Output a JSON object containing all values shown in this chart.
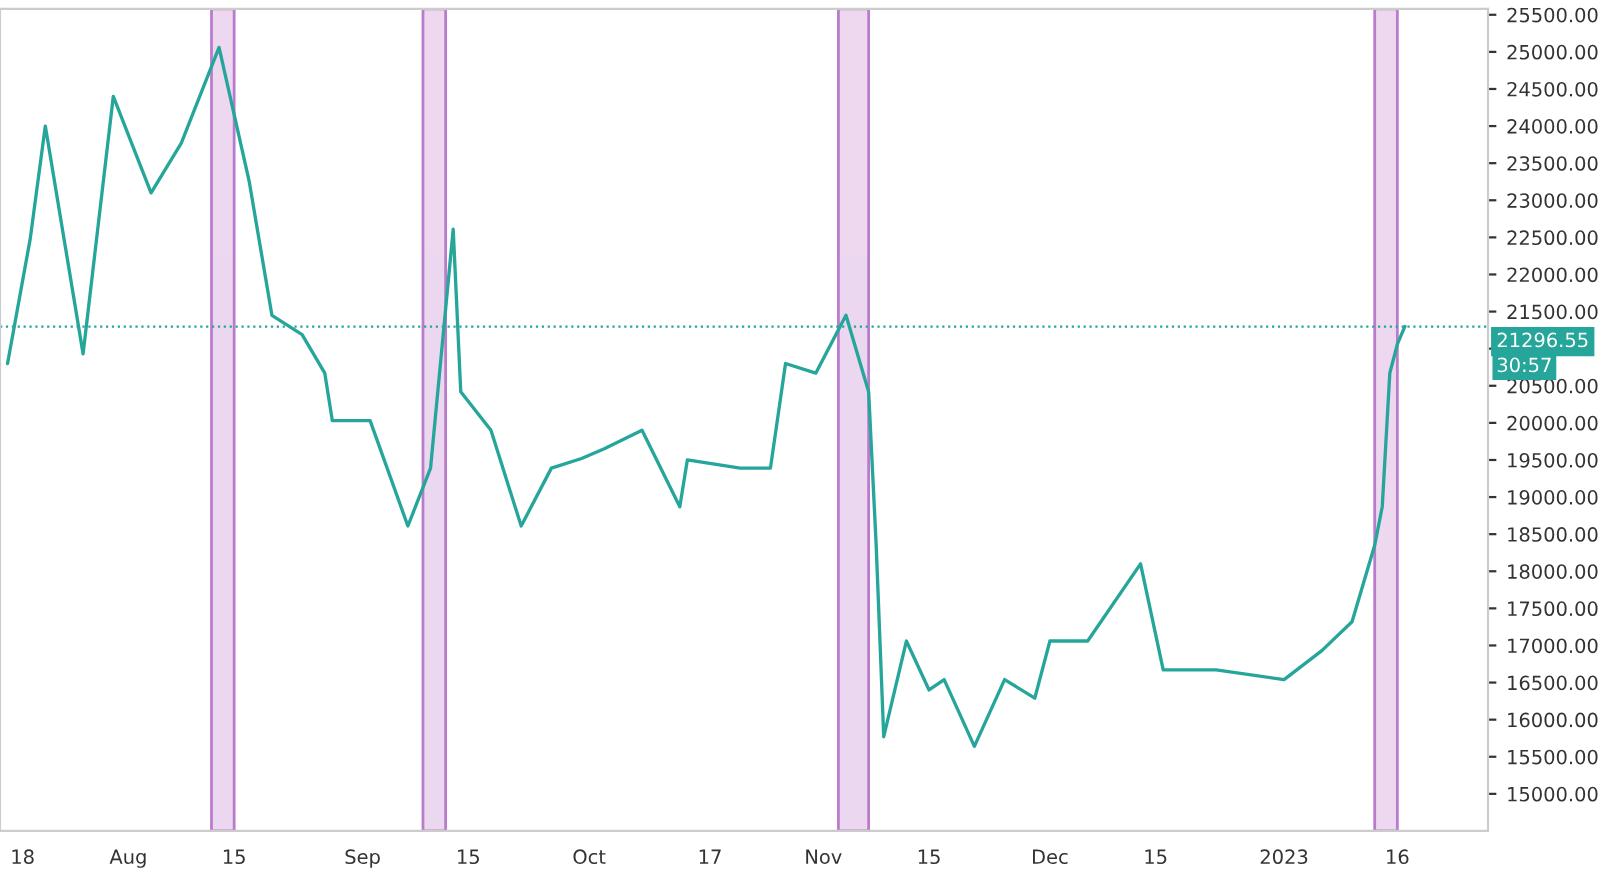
{
  "chart_data": {
    "type": "line",
    "x": [
      "2022-07-16",
      "2022-07-19",
      "2022-07-21",
      "2022-07-26",
      "2022-07-30",
      "2022-08-04",
      "2022-08-08",
      "2022-08-13",
      "2022-08-17",
      "2022-08-20",
      "2022-08-24",
      "2022-08-27",
      "2022-08-28",
      "2022-09-02",
      "2022-09-07",
      "2022-09-10",
      "2022-09-13",
      "2022-09-14",
      "2022-09-18",
      "2022-09-22",
      "2022-09-26",
      "2022-09-30",
      "2022-10-03",
      "2022-10-08",
      "2022-10-13",
      "2022-10-14",
      "2022-10-21",
      "2022-10-25",
      "2022-10-27",
      "2022-10-31",
      "2022-11-04",
      "2022-11-07",
      "2022-11-08",
      "2022-11-09",
      "2022-11-12",
      "2022-11-15",
      "2022-11-17",
      "2022-11-21",
      "2022-11-25",
      "2022-11-29",
      "2022-12-01",
      "2022-12-06",
      "2022-12-13",
      "2022-12-16",
      "2022-12-23",
      "2023-01-01",
      "2023-01-06",
      "2023-01-10",
      "2023-01-13",
      "2023-01-14",
      "2023-01-15",
      "2023-01-16",
      "2023-01-17"
    ],
    "series": [
      {
        "color": "#26a69a",
        "values": [
          20800,
          22480,
          24000,
          20930,
          24400,
          23100,
          23770,
          25060,
          23250,
          21450,
          21190,
          20670,
          20030,
          20030,
          18610,
          19390,
          22610,
          20420,
          19900,
          18610,
          19390,
          19520,
          19650,
          19900,
          18870,
          19500,
          19390,
          19390,
          20800,
          20670,
          21450,
          20420,
          18350,
          15770,
          17060,
          16400,
          16540,
          15640,
          16540,
          16290,
          17060,
          17060,
          18100,
          16670,
          16670,
          16540,
          16930,
          17320,
          18350,
          18870,
          20670,
          21060,
          21300
        ]
      }
    ],
    "xlim": [
      "2022-07-15",
      "2023-01-28"
    ],
    "ylim": [
      14500,
      25580
    ],
    "xticks": [
      {
        "value": "2022-07-18",
        "label": "18"
      },
      {
        "value": "2022-08-01",
        "label": "Aug"
      },
      {
        "value": "2022-08-15",
        "label": "15"
      },
      {
        "value": "2022-09-01",
        "label": "Sep"
      },
      {
        "value": "2022-09-15",
        "label": "15"
      },
      {
        "value": "2022-10-01",
        "label": "Oct"
      },
      {
        "value": "2022-10-17",
        "label": "17"
      },
      {
        "value": "2022-11-01",
        "label": "Nov"
      },
      {
        "value": "2022-11-15",
        "label": "15"
      },
      {
        "value": "2022-12-01",
        "label": "Dec"
      },
      {
        "value": "2022-12-15",
        "label": "15"
      },
      {
        "value": "2023-01-01",
        "label": "2023"
      },
      {
        "value": "2023-01-16",
        "label": "16"
      }
    ],
    "yticks": [
      {
        "value": 15000,
        "label": "15000.00"
      },
      {
        "value": 15500,
        "label": "15500.00"
      },
      {
        "value": 16000,
        "label": "16000.00"
      },
      {
        "value": 16500,
        "label": "16500.00"
      },
      {
        "value": 17000,
        "label": "17000.00"
      },
      {
        "value": 17500,
        "label": "17500.00"
      },
      {
        "value": 18000,
        "label": "18000.00"
      },
      {
        "value": 18500,
        "label": "18500.00"
      },
      {
        "value": 19000,
        "label": "19000.00"
      },
      {
        "value": 19500,
        "label": "19500.00"
      },
      {
        "value": 20000,
        "label": "20000.00"
      },
      {
        "value": 20500,
        "label": "20500.00"
      },
      {
        "value": 21000,
        "label": null
      },
      {
        "value": 21500,
        "label": "21500.00"
      },
      {
        "value": 22000,
        "label": "22000.00"
      },
      {
        "value": 22500,
        "label": "22500.00"
      },
      {
        "value": 23000,
        "label": "23000.00"
      },
      {
        "value": 23500,
        "label": "23500.00"
      },
      {
        "value": 24000,
        "label": "24000.00"
      },
      {
        "value": 24500,
        "label": "24500.00"
      },
      {
        "value": 25000,
        "label": "25000.00"
      },
      {
        "value": 25500,
        "label": "25500.00"
      }
    ],
    "ref_lines": [
      {
        "axis": "y",
        "value": 21296.55,
        "label": "21296.55",
        "color": "#26a69a",
        "line_style": "dotted"
      }
    ],
    "bands": [
      {
        "axis": "x",
        "from": "2022-08-12",
        "to": "2022-08-15",
        "color": "#e1bee7"
      },
      {
        "axis": "x",
        "from": "2022-09-09",
        "to": "2022-09-12",
        "color": "#e1bee7"
      },
      {
        "axis": "x",
        "from": "2022-11-03",
        "to": "2022-11-07",
        "color": "#e1bee7"
      },
      {
        "axis": "x",
        "from": "2023-01-13",
        "to": "2023-01-16",
        "color": "#e1bee7"
      }
    ],
    "annotations": [
      "30:57"
    ],
    "grid": false,
    "legend": false
  }
}
